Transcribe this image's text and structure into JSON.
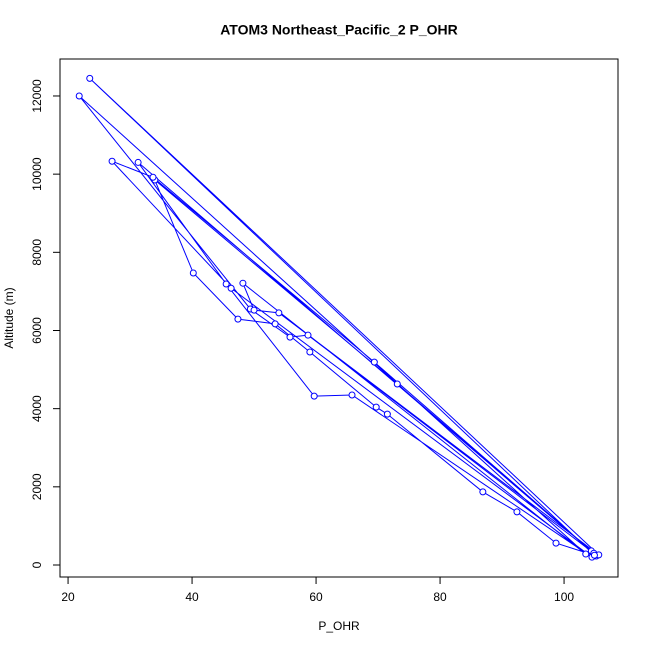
{
  "chart_data": {
    "type": "line",
    "title": "ATOM3 Northeast_Pacific_2 P_OHR",
    "x_label": "P_OHR",
    "y_label": "Altitude (m)",
    "color": "#0000ff",
    "markers": true,
    "x": [
      105.2,
      98.7,
      92.4,
      86.9,
      71.5,
      69.7,
      59.0,
      53.4,
      47.4,
      40.2,
      34.0,
      73.1,
      104.4,
      69.4,
      33.7,
      27.1,
      46.3,
      104.5,
      65.8,
      59.7,
      45.5,
      31.3,
      104.8,
      58.7,
      55.8,
      49.4,
      21.8,
      103.5,
      48.2,
      50.0,
      54.0,
      105.6,
      23.5,
      104.9
    ],
    "values": [
      230,
      560,
      1360,
      1870,
      3860,
      4040,
      5450,
      6170,
      6290,
      7470,
      9850,
      4630,
      360,
      5190,
      9920,
      10330,
      7080,
      200,
      4350,
      4320,
      7190,
      10300,
      300,
      5880,
      5830,
      6550,
      12000,
      280,
      7210,
      6520,
      6450,
      260,
      12450,
      250
    ],
    "xlim": [
      18.7,
      108.7
    ],
    "ylim": [
      -307,
      12946
    ],
    "xticks": [
      20,
      40,
      60,
      80,
      100
    ],
    "yticks": [
      0,
      2000,
      4000,
      6000,
      8000,
      10000,
      12000
    ]
  }
}
